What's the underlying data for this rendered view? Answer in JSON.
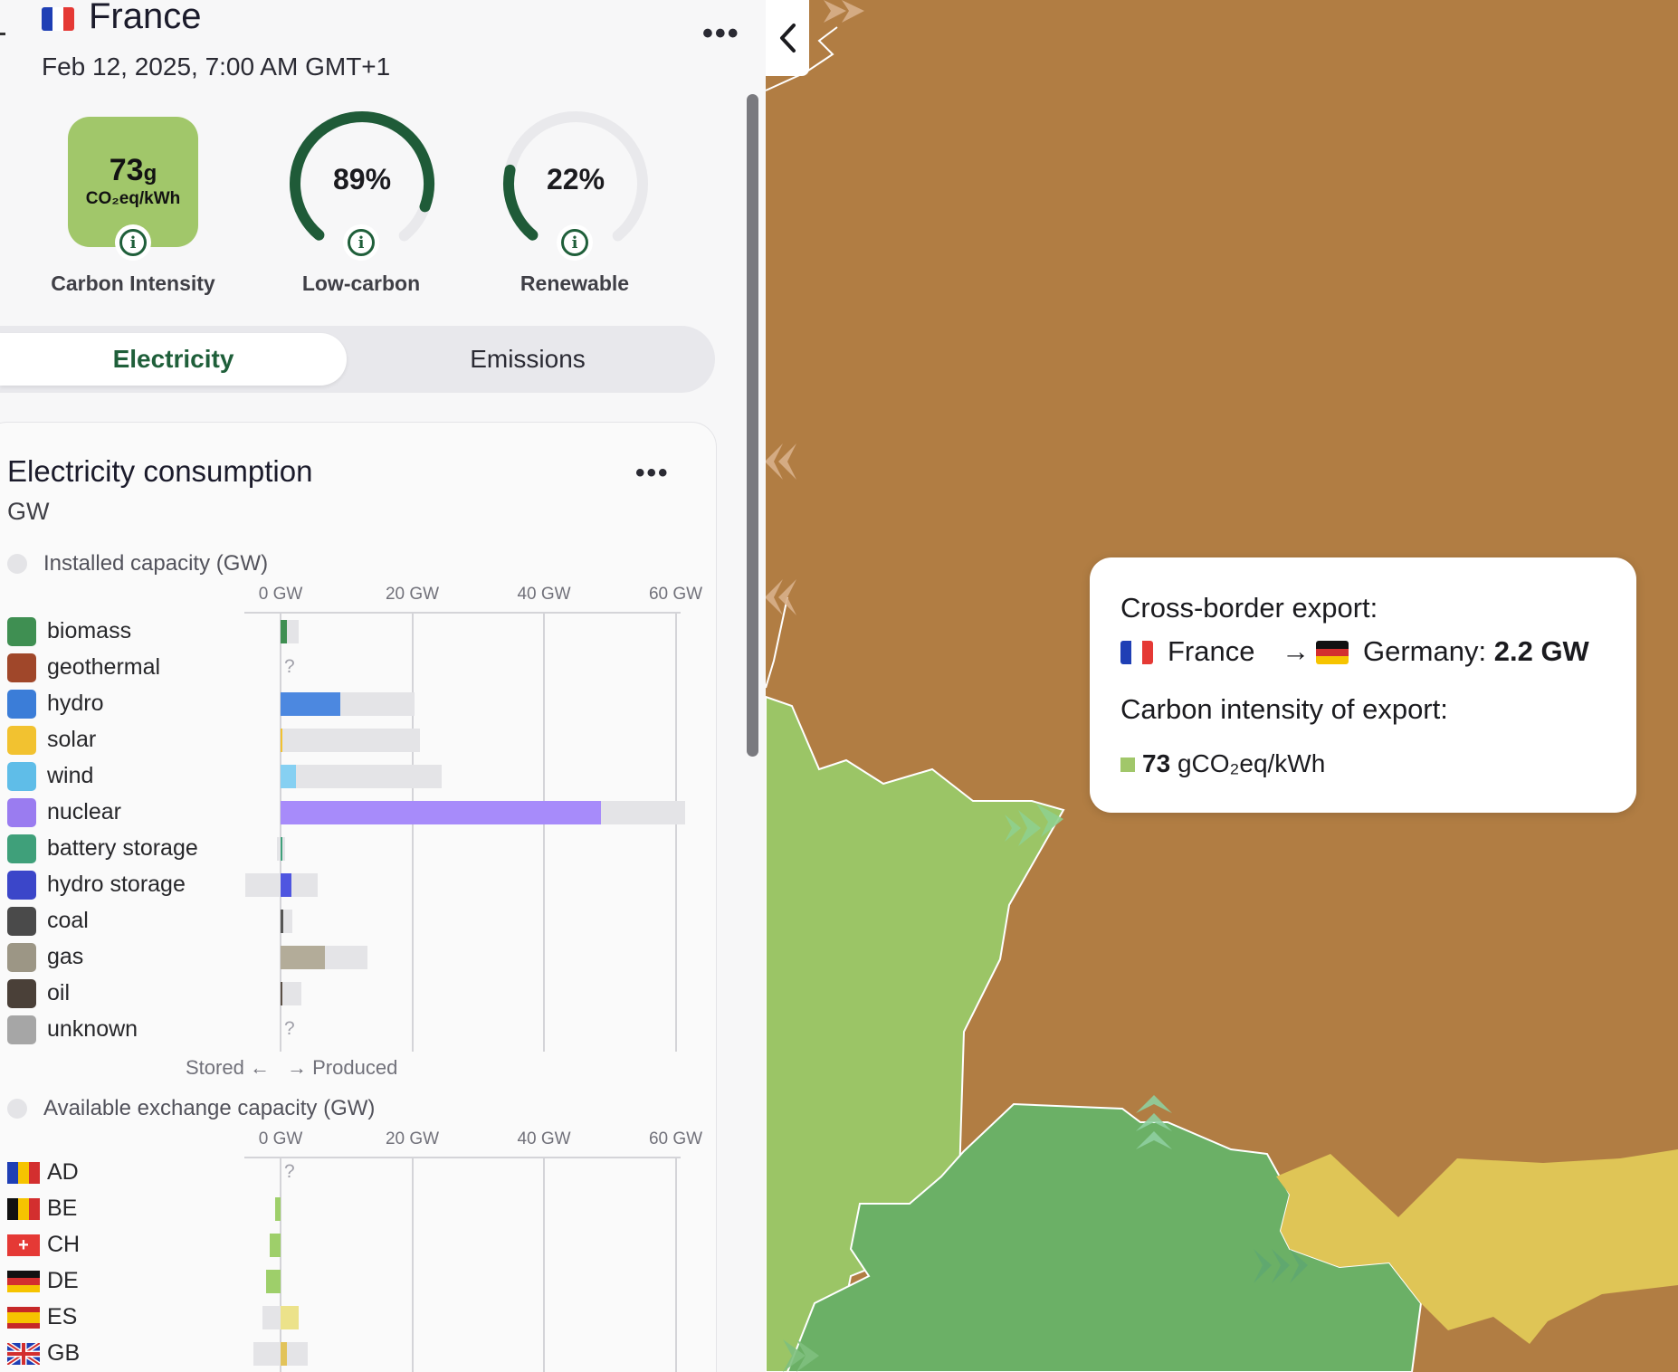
{
  "header": {
    "country": "France",
    "datetime": "Feb 12, 2025, 7:00 AM GMT+1",
    "more_icon": "more-horizontal-icon",
    "collapse_icon": "chevron-left-icon"
  },
  "kpis": {
    "carbon_intensity": {
      "value": "73",
      "unit_g": "g",
      "unit": "CO₂eq/kWh",
      "label": "Carbon Intensity",
      "color": "#a1c76a"
    },
    "low_carbon": {
      "value": "89%",
      "fraction": 0.89,
      "label": "Low-carbon"
    },
    "renewable": {
      "value": "22%",
      "fraction": 0.22,
      "label": "Renewable"
    },
    "gauge_color": "#1f5b38",
    "gauge_track": "#e9e9ec"
  },
  "tabs": {
    "active": "Electricity",
    "inactive": "Emissions"
  },
  "consumption": {
    "title": "Electricity consumption",
    "unit": "GW",
    "installed_label": "Installed capacity (GW)",
    "exchange_label": "Available exchange capacity (GW)",
    "axis_ticks": [
      "0 GW",
      "20 GW",
      "40 GW",
      "60 GW"
    ],
    "stored_label": "Stored",
    "produced_label": "Produced",
    "unknown_mark": "?"
  },
  "chart_data": [
    {
      "type": "bar",
      "title": "Installed capacity (GW)",
      "ylim": [
        0,
        60
      ],
      "categories": [
        "biomass",
        "geothermal",
        "hydro",
        "solar",
        "wind",
        "nuclear",
        "battery storage",
        "hydro storage",
        "coal",
        "gas",
        "oil",
        "unknown"
      ],
      "series": [
        {
          "name": "production",
          "values": [
            1.0,
            null,
            9.1,
            0.2,
            2.3,
            48.6,
            0.1,
            1.7,
            0.4,
            6.8,
            0.3,
            null
          ]
        },
        {
          "name": "capacity",
          "values": [
            2.7,
            null,
            20.3,
            21.2,
            24.5,
            61.4,
            0.7,
            5.6,
            1.8,
            13.2,
            3.1,
            null
          ]
        },
        {
          "name": "storage capacity",
          "values": [
            0,
            null,
            0,
            0,
            0,
            0,
            0.6,
            5.4,
            0,
            0,
            0,
            null
          ]
        }
      ]
    },
    {
      "type": "bar",
      "title": "Available exchange capacity (GW)",
      "ylim": [
        0,
        60
      ],
      "categories": [
        "AD",
        "BE",
        "CH",
        "DE",
        "ES",
        "GB"
      ],
      "series": [
        {
          "name": "flow",
          "values": [
            null,
            -0.8,
            -1.6,
            -2.2,
            2.8,
            0.9
          ]
        },
        {
          "name": "capacity",
          "values": [
            null,
            0,
            0,
            0,
            2.8,
            4.1
          ]
        },
        {
          "name": "import capacity",
          "values": [
            null,
            0,
            0,
            0,
            2.8,
            4.1
          ]
        }
      ]
    }
  ],
  "sources": [
    {
      "name": "biomass",
      "icon": "leaf-icon",
      "color": "#3f8f52",
      "bar_color": "#3f8f52"
    },
    {
      "name": "geothermal",
      "icon": "heat-waves-icon",
      "color": "#a0472a",
      "bar_color": "#a0472a"
    },
    {
      "name": "hydro",
      "icon": "water-waves-icon",
      "color": "#3b7dd8",
      "bar_color": "#4c88e0"
    },
    {
      "name": "solar",
      "icon": "sun-icon",
      "color": "#f2c230",
      "bar_color": "#f2c230"
    },
    {
      "name": "wind",
      "icon": "wind-icon",
      "color": "#5fbde8",
      "bar_color": "#86d0f2"
    },
    {
      "name": "nuclear",
      "icon": "atom-icon",
      "color": "#9a7cf0",
      "bar_color": "#a78bfa"
    },
    {
      "name": "battery storage",
      "icon": "battery-icon",
      "color": "#3fa07a",
      "bar_color": "#3fa07a"
    },
    {
      "name": "hydro storage",
      "icon": "dam-icon",
      "color": "#3b46c9",
      "bar_color": "#4f56e0"
    },
    {
      "name": "coal",
      "icon": "coal-icon",
      "color": "#4a4a4a",
      "bar_color": "#555555"
    },
    {
      "name": "gas",
      "icon": "flame-icon",
      "color": "#9c9685",
      "bar_color": "#b3ac99"
    },
    {
      "name": "oil",
      "icon": "droplet-icon",
      "color": "#4a4038",
      "bar_color": "#5a4f45"
    },
    {
      "name": "unknown",
      "icon": "question-icon",
      "color": "#a6a6a6",
      "bar_color": "#a6a6a6"
    }
  ],
  "exchanges": [
    {
      "code": "AD",
      "icon": "flag-ad-icon",
      "bar_color": "#9ecf6a"
    },
    {
      "code": "BE",
      "icon": "flag-be-icon",
      "bar_color": "#9ecf6a"
    },
    {
      "code": "CH",
      "icon": "flag-ch-icon",
      "bar_color": "#9ecf6a"
    },
    {
      "code": "DE",
      "icon": "flag-de-icon",
      "bar_color": "#9ecf6a"
    },
    {
      "code": "ES",
      "icon": "flag-es-icon",
      "bar_color": "#ece28a"
    },
    {
      "code": "GB",
      "icon": "flag-gb-icon",
      "bar_color": "#e2c35a"
    }
  ],
  "tooltip": {
    "title": "Cross-border export:",
    "from": "France",
    "arrow": "→",
    "to": "Germany:",
    "value": "2.2 GW",
    "intensity_title": "Carbon intensity of export:",
    "intensity_value": "73",
    "intensity_unit": "gCO₂eq/kWh",
    "intensity_color": "#a1c76a"
  },
  "map": {
    "land_color": "#b17d43",
    "france_color": "#9bc566",
    "switzerland_color": "#6bb066",
    "italy_color": "#dfc556",
    "border_color": "#ffffff"
  }
}
